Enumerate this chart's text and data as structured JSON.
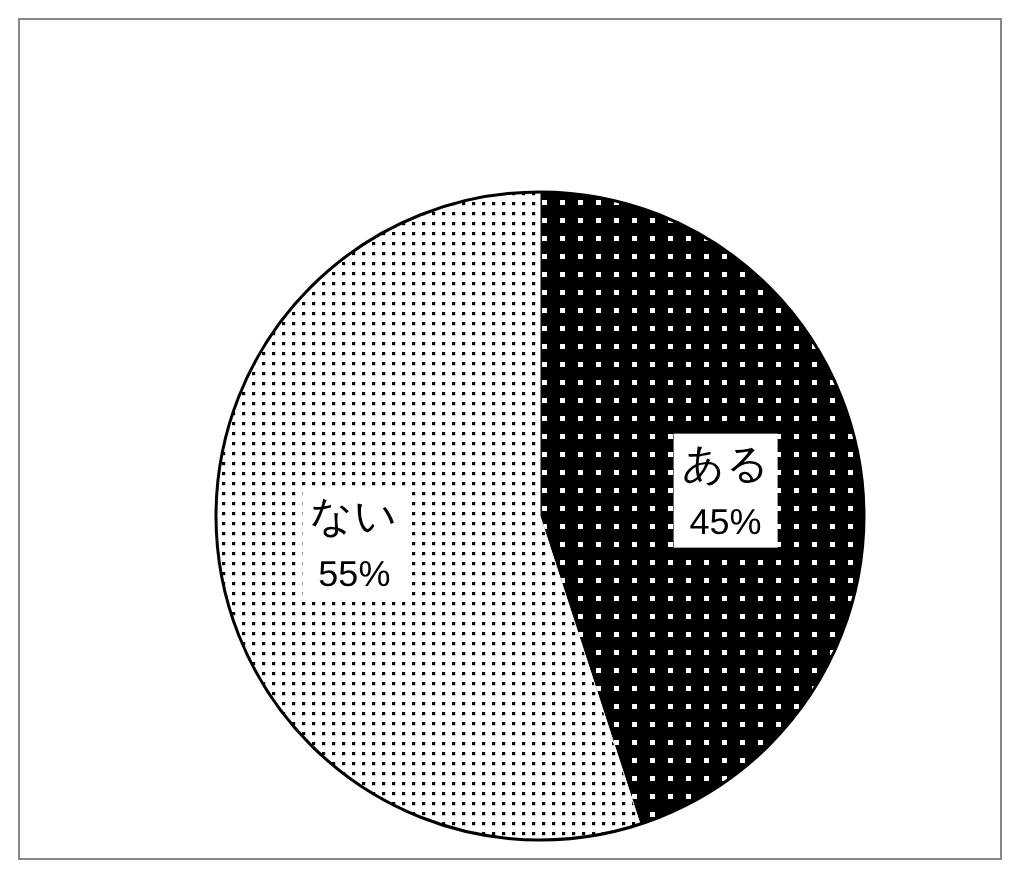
{
  "chart_data": {
    "type": "pie",
    "categories": [
      "ある",
      "ない"
    ],
    "values": [
      45,
      55
    ],
    "value_labels": [
      "45%",
      "55%"
    ],
    "colors": [
      "#000000",
      "#ffffff"
    ]
  }
}
